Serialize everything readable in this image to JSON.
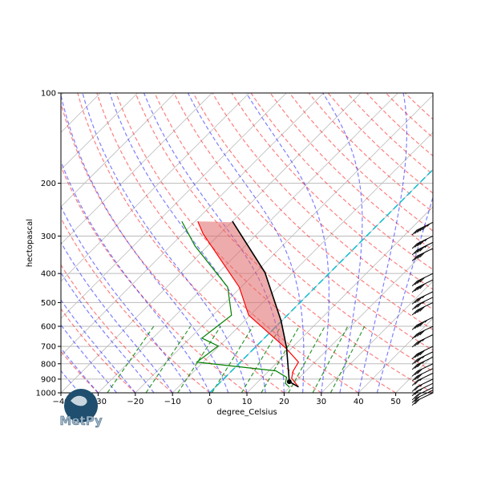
{
  "chart_data": {
    "type": "line",
    "subtype": "skew-T log-P diagram",
    "xlabel": "degree_Celsius",
    "ylabel": "hectopascal",
    "xlim": [
      -40,
      60
    ],
    "ylim": [
      1000,
      100
    ],
    "y_scale": "log",
    "x_ticks": [
      -40,
      -30,
      -20,
      -10,
      0,
      10,
      20,
      30,
      40,
      50
    ],
    "y_ticks": [
      100,
      200,
      300,
      400,
      500,
      600,
      700,
      800,
      900,
      1000
    ],
    "grid": true,
    "series": [
      {
        "kind": "temperature",
        "color": "#ff0000",
        "p": [
          956,
          894,
          847,
          790,
          713,
          551,
          444,
          295,
          268
        ],
        "T": [
          22.3,
          18.1,
          16.6,
          15.6,
          8.8,
          -10.4,
          -20.5,
          -44.5,
          -49.3
        ]
      },
      {
        "kind": "dewpoint",
        "color": "#008000",
        "p": [
          956,
          930,
          888,
          845,
          790,
          698,
          657,
          551,
          444,
          324,
          268
        ],
        "T": [
          19.8,
          17.8,
          16.5,
          11.9,
          -11.7,
          -10.3,
          -16.8,
          -15.0,
          -23.6,
          -43.4,
          -53.6
        ]
      },
      {
        "kind": "parcel",
        "color": "#000000",
        "p": [
          956,
          918,
          705,
          575,
          397,
          268
        ],
        "T": [
          22.3,
          18.4,
          8.4,
          -0.2,
          -17.5,
          -40.0
        ]
      }
    ],
    "lcl": {
      "p": 918,
      "T": 18.4
    },
    "cape_shading_color": "#e06666",
    "zero_isotherm_color": "#17becf",
    "dry_adiabat_color": "#ff0000",
    "moist_adiabat_color": "#0000ff",
    "mixing_ratio_color": "#008000",
    "wind_barbs": {
      "p": [
        270,
        300,
        315,
        330,
        400,
        420,
        460,
        480,
        500,
        560,
        600,
        640,
        700,
        730,
        760,
        800,
        830,
        860,
        900,
        930,
        960,
        980,
        1000
      ],
      "speed_kt": [
        55,
        45,
        45,
        40,
        40,
        40,
        35,
        35,
        40,
        45,
        40,
        35,
        40,
        35,
        35,
        30,
        30,
        25,
        25,
        25,
        20,
        20,
        20
      ]
    }
  },
  "logo": {
    "text": "MetPy"
  }
}
